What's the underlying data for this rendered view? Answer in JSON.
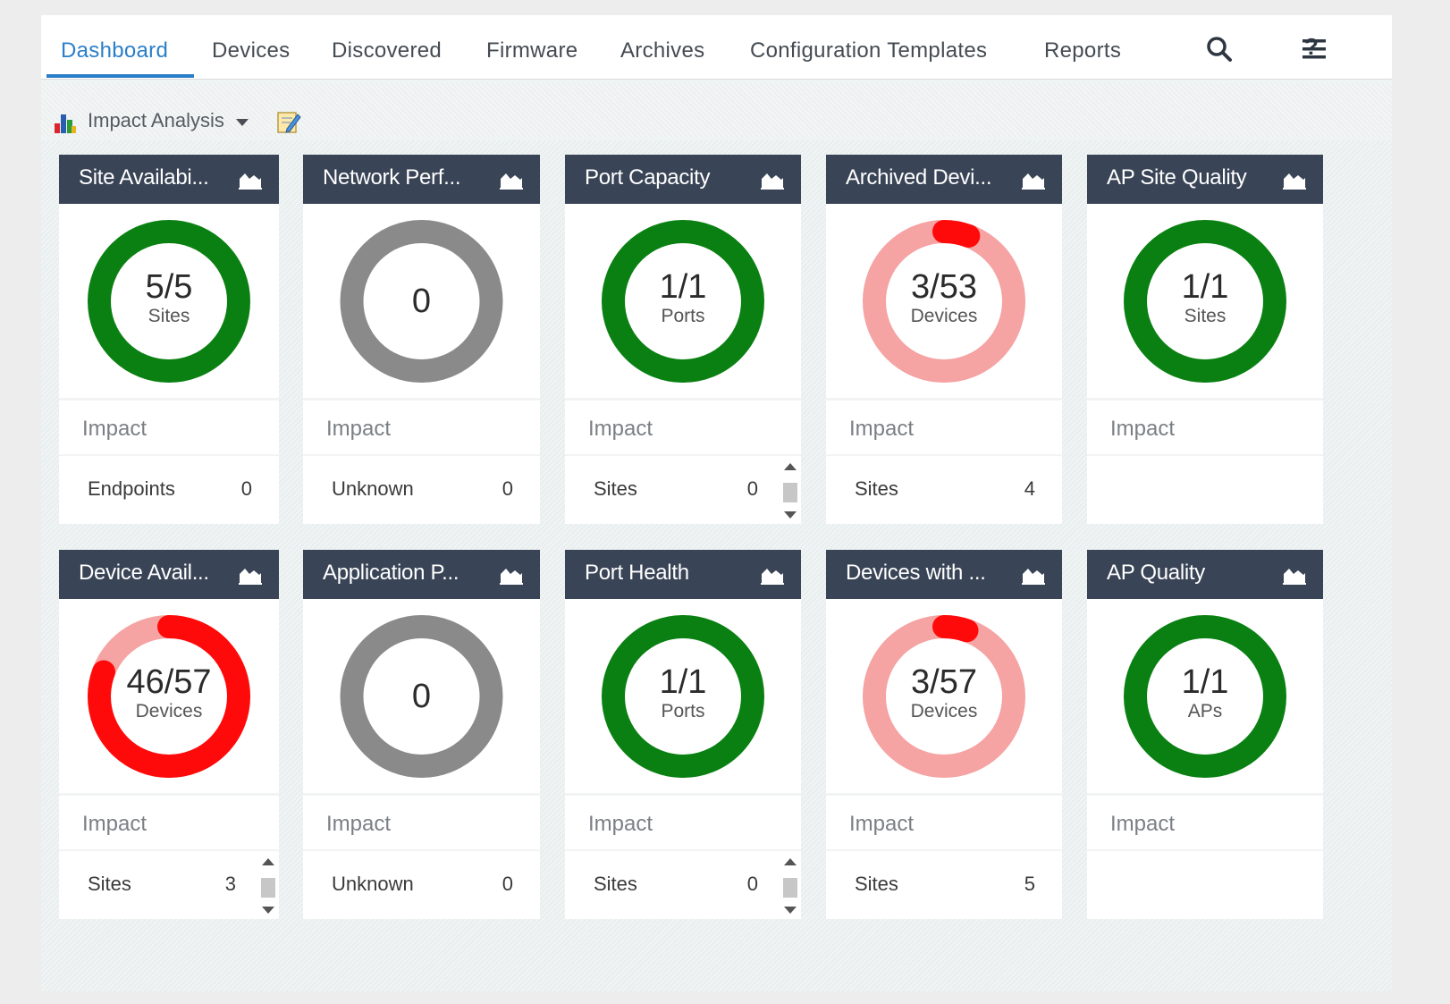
{
  "nav": {
    "tabs": [
      "Dashboard",
      "Devices",
      "Discovered",
      "Firmware",
      "Archives",
      "Configuration Templates",
      "Reports"
    ],
    "active_tab": "Dashboard",
    "icons": [
      "search-icon",
      "help-icon",
      "menu-icon"
    ],
    "help_glyph": "?"
  },
  "toolbar": {
    "dashboard_select": "Impact Analysis",
    "icons": [
      "dashboard-icon",
      "chevron-down-icon",
      "edit-icon"
    ]
  },
  "colors": {
    "accent": "#2a7fc8",
    "header": "#394456",
    "good": "#0a8012",
    "warn_light": "#f5a3a3",
    "alert": "#ff0a0a",
    "neutral": "#8a8a8a"
  },
  "widgets": [
    {
      "title": "Site Availabi...",
      "value": "5/5",
      "unit": "Sites",
      "ring": "good",
      "impact_label": "Impact",
      "row": {
        "label": "Endpoints",
        "value": "0"
      }
    },
    {
      "title": "Network Perf...",
      "value": "0",
      "unit": "",
      "ring": "neutral",
      "impact_label": "Impact",
      "row": {
        "label": "Unknown",
        "value": "0"
      }
    },
    {
      "title": "Port Capacity",
      "value": "1/1",
      "unit": "Ports",
      "ring": "good",
      "impact_label": "Impact",
      "row": {
        "label": "Sites",
        "value": "0"
      },
      "scrollbar": true
    },
    {
      "title": "Archived Devi...",
      "value": "3/53",
      "unit": "Devices",
      "ring": "partial",
      "fraction": 0.057,
      "impact_label": "Impact",
      "row": {
        "label": "Sites",
        "value": "4"
      }
    },
    {
      "title": "AP Site Quality",
      "value": "1/1",
      "unit": "Sites",
      "ring": "good",
      "impact_label": "Impact"
    },
    {
      "title": "Device Avail...",
      "value": "46/57",
      "unit": "Devices",
      "ring": "partial",
      "fraction": 0.807,
      "impact_label": "Impact",
      "row": {
        "label": "Sites",
        "value": "3"
      },
      "scrollbar": true
    },
    {
      "title": "Application P...",
      "value": "0",
      "unit": "",
      "ring": "neutral",
      "impact_label": "Impact",
      "row": {
        "label": "Unknown",
        "value": "0"
      }
    },
    {
      "title": "Port Health",
      "value": "1/1",
      "unit": "Ports",
      "ring": "good",
      "impact_label": "Impact",
      "row": {
        "label": "Sites",
        "value": "0"
      },
      "scrollbar": true
    },
    {
      "title": "Devices with ...",
      "value": "3/57",
      "unit": "Devices",
      "ring": "partial",
      "fraction": 0.053,
      "impact_label": "Impact",
      "row": {
        "label": "Sites",
        "value": "5"
      }
    },
    {
      "title": "AP Quality",
      "value": "1/1",
      "unit": "APs",
      "ring": "good",
      "impact_label": "Impact"
    }
  ]
}
